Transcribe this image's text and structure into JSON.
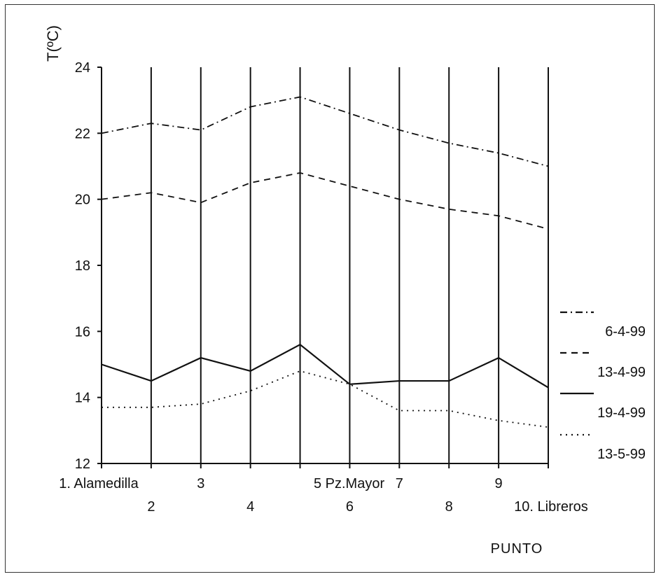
{
  "chart_data": {
    "type": "line",
    "ylabel": "T(ºC)",
    "xlabel": "PUNTO",
    "ylim": [
      12,
      24
    ],
    "yticks": [
      12,
      14,
      16,
      18,
      20,
      22,
      24
    ],
    "categories": [
      "1. Alamedilla",
      "2",
      "3",
      "4",
      "5 Pz.Mayor",
      "6",
      "7",
      "8",
      "9",
      "10. Libreros"
    ],
    "series": [
      {
        "name": "6-4-99",
        "dash": "dashdot",
        "values": [
          22.0,
          22.3,
          22.1,
          22.8,
          23.1,
          22.6,
          22.1,
          21.7,
          21.4,
          21.0
        ]
      },
      {
        "name": "13-4-99",
        "dash": "dashed",
        "values": [
          20.0,
          20.2,
          19.9,
          20.5,
          20.8,
          20.4,
          20.0,
          19.7,
          19.5,
          19.1
        ]
      },
      {
        "name": "19-4-99",
        "dash": "solid",
        "values": [
          15.0,
          14.5,
          15.2,
          14.8,
          15.6,
          14.4,
          14.5,
          14.5,
          15.2,
          14.3
        ]
      },
      {
        "name": "13-5-99",
        "dash": "dotted",
        "values": [
          13.7,
          13.7,
          13.8,
          14.2,
          14.8,
          14.4,
          13.6,
          13.6,
          13.3,
          13.1
        ]
      }
    ],
    "grid": {
      "vertical": true,
      "horizontal": false
    },
    "legend_position": "right"
  }
}
